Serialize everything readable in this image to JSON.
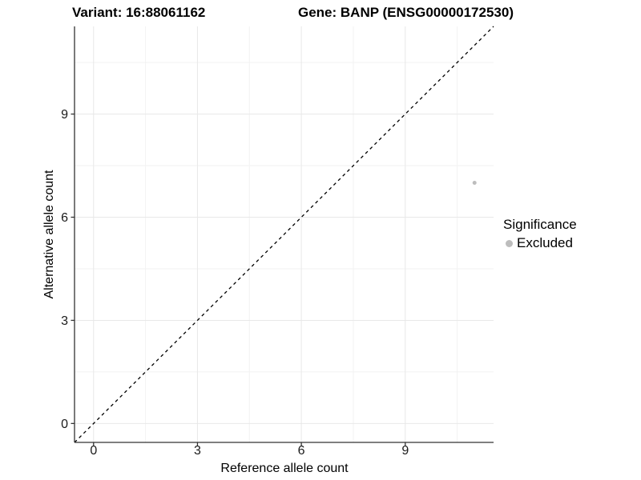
{
  "chart_data": {
    "type": "scatter",
    "titles": {
      "left": "Variant: 16:88061162",
      "right": "Gene: BANP (ENSG00000172530)"
    },
    "xlabel": "Reference allele count",
    "ylabel": "Alternative allele count",
    "xlim": [
      -0.55,
      11.55
    ],
    "ylim": [
      -0.55,
      11.55
    ],
    "x_ticks": [
      0,
      3,
      6,
      9
    ],
    "y_ticks": [
      0,
      3,
      6,
      9
    ],
    "x_minor_breaks": [
      1.5,
      4.5,
      7.5,
      10.5
    ],
    "y_minor_breaks": [
      1.5,
      4.5,
      7.5,
      10.5
    ],
    "grid": true,
    "points": [
      {
        "x": 11,
        "y": 7,
        "series": "Excluded"
      }
    ],
    "reference_line": {
      "slope": 1,
      "intercept": 0,
      "linetype": "dashed"
    },
    "legend": {
      "title": "Significance",
      "position": "right",
      "items": [
        {
          "label": "Excluded",
          "color": "#bdbdbd"
        }
      ]
    },
    "colors": {
      "point": "#bdbdbd",
      "axis_line": "#333333",
      "tick_mark": "#333333",
      "tick_text": "#1a1a1a",
      "grid_major": "#e8e8e8",
      "grid_minor": "#f2f2f2",
      "reference_line": "#000000",
      "title_text": "#000000"
    }
  }
}
